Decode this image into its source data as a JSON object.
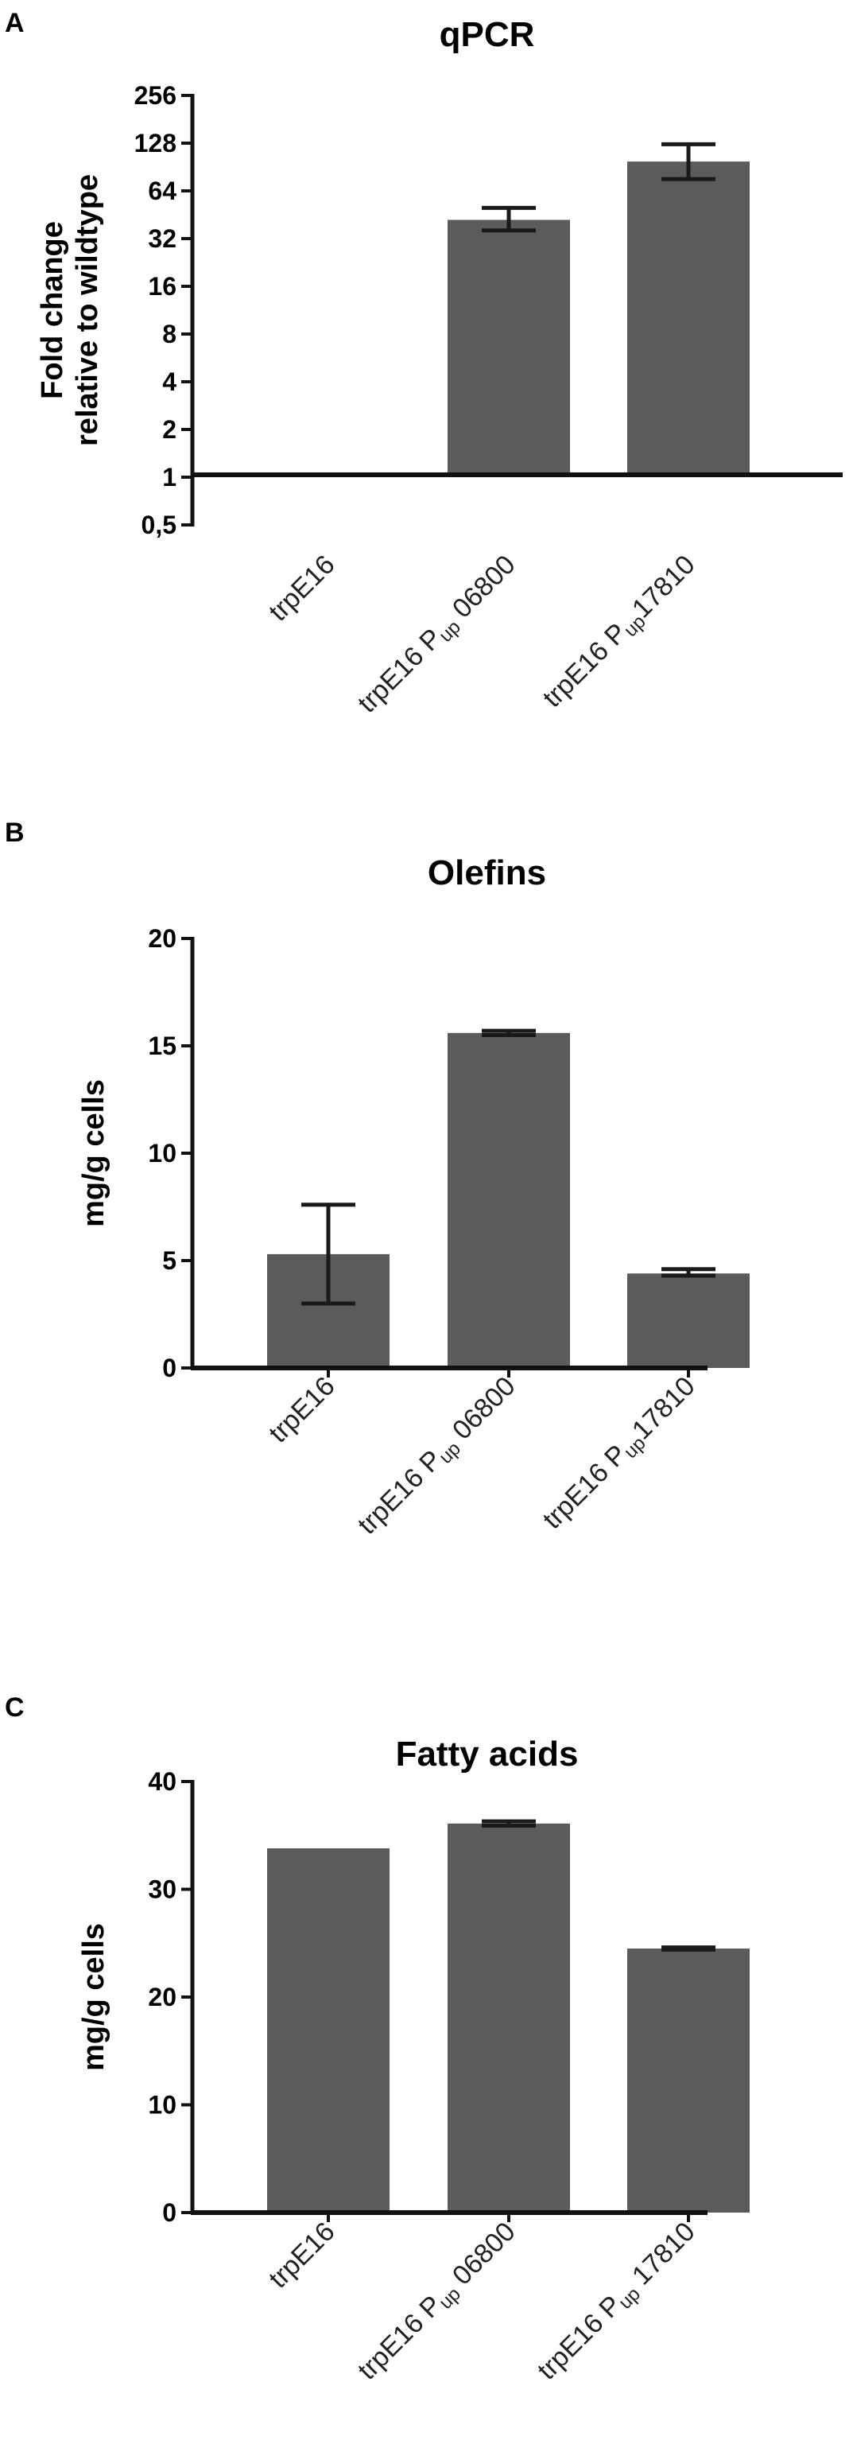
{
  "chart_data": [
    {
      "panel": "A",
      "type": "bar",
      "title": "qPCR",
      "ylabel": [
        "Fold change",
        "relative to wildtype"
      ],
      "yscale": "log2",
      "ylim": [
        0.5,
        256
      ],
      "yticks": [
        0.5,
        1,
        2,
        4,
        8,
        16,
        32,
        64,
        128,
        256
      ],
      "ytick_labels": [
        "0,5",
        "1",
        "2",
        "4",
        "8",
        "16",
        "32",
        "64",
        "128",
        "256"
      ],
      "baseline": 1,
      "categories": [
        {
          "main": "trpE16",
          "sub": "",
          "tail": ""
        },
        {
          "main": "trpE16 P",
          "sub": "up",
          "tail": " 06800"
        },
        {
          "main": "trpE16 P",
          "sub": "up",
          "tail": "17810"
        }
      ],
      "values": [
        1,
        42,
        98
      ],
      "error_low": [
        null,
        36,
        76
      ],
      "error_high": [
        null,
        50,
        126
      ],
      "bar_color": "#5b5b5b",
      "grid": false
    },
    {
      "panel": "B",
      "type": "bar",
      "title": "Olefins",
      "ylabel": [
        "mg/g cells"
      ],
      "yscale": "linear",
      "ylim": [
        0,
        20
      ],
      "yticks": [
        0,
        5,
        10,
        15,
        20
      ],
      "ytick_labels": [
        "0",
        "5",
        "10",
        "15",
        "20"
      ],
      "baseline": 0,
      "categories": [
        {
          "main": "trpE16",
          "sub": "",
          "tail": ""
        },
        {
          "main": "trpE16 P",
          "sub": "up",
          "tail": " 06800"
        },
        {
          "main": "trpE16 P",
          "sub": "up",
          "tail": "17810"
        }
      ],
      "values": [
        5.3,
        15.6,
        4.4
      ],
      "error_low": [
        3.0,
        15.5,
        4.3
      ],
      "error_high": [
        7.6,
        15.7,
        4.6
      ],
      "bar_color": "#5b5b5b",
      "grid": false
    },
    {
      "panel": "C",
      "type": "bar",
      "title": "Fatty acids",
      "ylabel": [
        "mg/g cells"
      ],
      "yscale": "linear",
      "ylim": [
        0,
        40
      ],
      "yticks": [
        0,
        10,
        20,
        30,
        40
      ],
      "ytick_labels": [
        "0",
        "10",
        "20",
        "30",
        "40"
      ],
      "baseline": 0,
      "categories": [
        {
          "main": "trpE16",
          "sub": "",
          "tail": ""
        },
        {
          "main": "trpE16 P",
          "sub": "up",
          "tail": " 06800"
        },
        {
          "main": "trpE16 P",
          "sub": "up",
          "tail": " 17810"
        }
      ],
      "values": [
        33.8,
        36.1,
        24.5
      ],
      "error_low": [
        null,
        35.9,
        24.4
      ],
      "error_high": [
        null,
        36.3,
        24.6
      ],
      "bar_color": "#5b5b5b",
      "grid": false
    }
  ]
}
